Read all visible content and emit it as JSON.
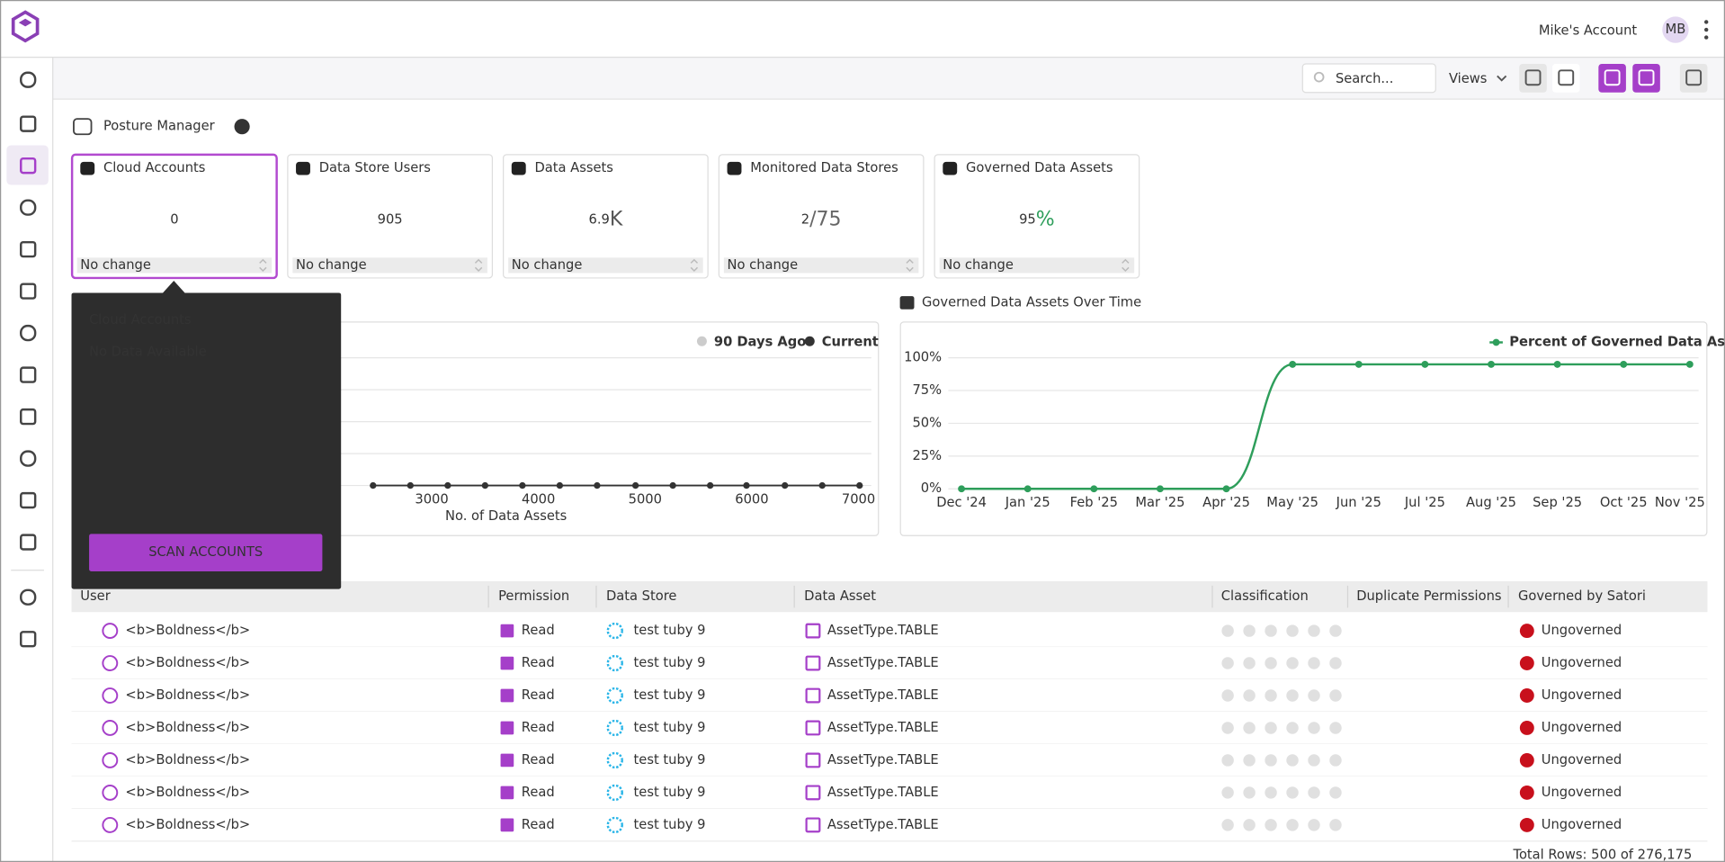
{
  "header": {
    "account": "Mike's Account",
    "avatar": "MB"
  },
  "toolbar": {
    "search_placeholder": "Search...",
    "views": "Views"
  },
  "page_title": "Posture Manager",
  "cards": [
    {
      "title": "Cloud Accounts",
      "value": 0,
      "footer": "No change",
      "color": "#555555"
    },
    {
      "title": "Data Store Users",
      "value": 905,
      "footer": "No change",
      "color": "#555555"
    },
    {
      "title": "Data Assets",
      "value": 6.9,
      "unit": "K",
      "footer": "No change",
      "color": "#555555"
    },
    {
      "title": "Monitored Data Stores",
      "value": 2,
      "unit": "/75",
      "footer": "No change",
      "color": "#c0121c"
    },
    {
      "title": "Governed Data Assets",
      "value": 95,
      "unit": "%",
      "footer": "No change",
      "color": "#2e9e5b"
    }
  ],
  "tooltip": {
    "title": "Cloud Accounts",
    "message": "No Data Available",
    "button": "SCAN ACCOUNTS"
  },
  "chart_data": [
    {
      "type": "line",
      "xlabel": "No. of Data Assets",
      "xlim": [
        0,
        7120
      ],
      "xticks": [
        3000,
        4000,
        5000,
        6000,
        7000
      ],
      "ylim": [
        0,
        4
      ],
      "series": [
        {
          "name": "90 Days Ago",
          "color": "#cccccc"
        },
        {
          "name": "Current",
          "color": "#333333",
          "x": [
            2450,
            2800,
            3150,
            3500,
            3850,
            4200,
            4550,
            4910,
            5260,
            5610,
            5950,
            6310,
            6660,
            7010
          ],
          "values": [
            0,
            0,
            0,
            0,
            0,
            0,
            0,
            0,
            0,
            0,
            0,
            0,
            0,
            0
          ]
        }
      ]
    },
    {
      "type": "line",
      "title": "Governed Data Assets Over Time",
      "categories": [
        "Dec '24",
        "Jan '25",
        "Feb '25",
        "Mar '25",
        "Apr '25",
        "May '25",
        "Jun '25",
        "Jul '25",
        "Aug '25",
        "Sep '25",
        "Oct '25",
        "Nov '25"
      ],
      "series": [
        {
          "name": "Percent of Governed Data Assets",
          "color": "#2e9e5b",
          "values": [
            0,
            0,
            0,
            0,
            0,
            95,
            95,
            95,
            95,
            95,
            95,
            95
          ]
        }
      ],
      "ylim": [
        0,
        100
      ],
      "yticks": [
        {
          "value": 0,
          "label": "0%"
        },
        {
          "value": 25,
          "label": "25%"
        },
        {
          "value": 50,
          "label": "50%"
        },
        {
          "value": 75,
          "label": "75%"
        },
        {
          "value": 100,
          "label": "100%"
        }
      ],
      "grid": true
    }
  ],
  "table": {
    "columns": [
      "User",
      "Permission",
      "Data Store",
      "Data Asset",
      "Classification",
      "Duplicate Permissions",
      "Governed by Satori"
    ],
    "rows": [
      [
        "<b>Boldness</b>",
        "Read",
        "test tuby 9",
        "AssetType.TABLE",
        "Ungoverned"
      ],
      [
        "<b>Boldness</b>",
        "Read",
        "test tuby 9",
        "AssetType.TABLE",
        "Ungoverned"
      ],
      [
        "<b>Boldness</b>",
        "Read",
        "test tuby 9",
        "AssetType.TABLE",
        "Ungoverned"
      ],
      [
        "<b>Boldness</b>",
        "Read",
        "test tuby 9",
        "AssetType.TABLE",
        "Ungoverned"
      ],
      [
        "<b>Boldness</b>",
        "Read",
        "test tuby 9",
        "AssetType.TABLE",
        "Ungoverned"
      ],
      [
        "<b>Boldness</b>",
        "Read",
        "test tuby 9",
        "AssetType.TABLE",
        "Ungoverned"
      ],
      [
        "<b>Boldness</b>",
        "Read",
        "test tuby 9",
        "AssetType.TABLE",
        "Ungoverned"
      ]
    ],
    "footer": "Total Rows: 500 of 276,175"
  }
}
